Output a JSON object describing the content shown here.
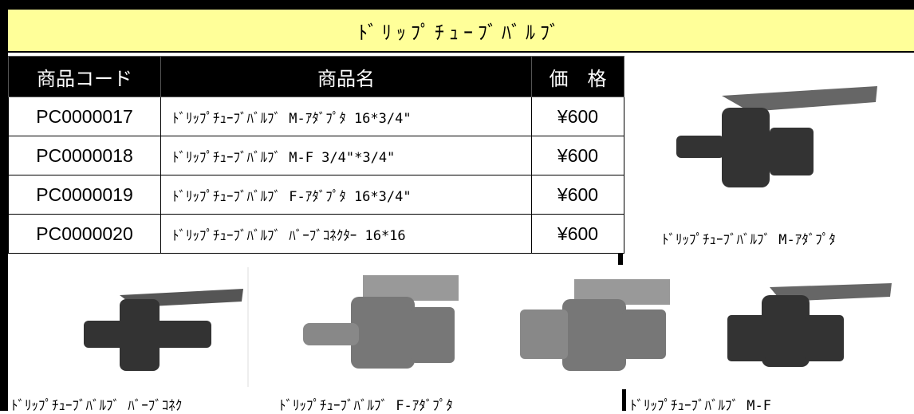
{
  "title": "ﾄﾞﾘｯﾌﾟﾁｭｰﾌﾞﾊﾞﾙﾌﾞ",
  "table": {
    "headers": [
      "商品コード",
      "商品名",
      "価　格"
    ],
    "rows": [
      [
        "PC0000017",
        "ﾄﾞﾘｯﾌﾟﾁｭｰﾌﾞﾊﾞﾙﾌﾞ M-ｱﾀﾞﾌﾟﾀ 16*3/4\"",
        "¥600"
      ],
      [
        "PC0000018",
        "ﾄﾞﾘｯﾌﾟﾁｭｰﾌﾞﾊﾞﾙﾌﾞ M-F 3/4\"*3/4\"",
        "¥600"
      ],
      [
        "PC0000019",
        "ﾄﾞﾘｯﾌﾟﾁｭｰﾌﾞﾊﾞﾙﾌﾞ F-ｱﾀﾞﾌﾟﾀ 16*3/4\"",
        "¥600"
      ],
      [
        "PC0000020",
        "ﾄﾞﾘｯﾌﾟﾁｭｰﾌﾞﾊﾞﾙﾌﾞ ﾊﾞｰﾌﾞｺﾈｸﾀｰ 16*16",
        "¥600"
      ]
    ]
  },
  "images": [
    {
      "caption": "ﾄﾞﾘｯﾌﾟﾁｭｰﾌﾞﾊﾞﾙﾌﾞ M-ｱﾀﾞﾌﾟﾀ"
    },
    {
      "caption": "ﾄﾞﾘｯﾌﾟﾁｭｰﾌﾞﾊﾞﾙﾌﾞ ﾊﾞｰﾌﾞｺﾈｸ"
    },
    {
      "caption": "ﾄﾞﾘｯﾌﾟﾁｭｰﾌﾞﾊﾞﾙﾌﾞ F-ｱﾀﾞﾌﾟﾀ"
    },
    {
      "caption": "ﾄﾞﾘｯﾌﾟﾁｭｰﾌﾞﾊﾞﾙﾌﾞ M-F"
    }
  ]
}
